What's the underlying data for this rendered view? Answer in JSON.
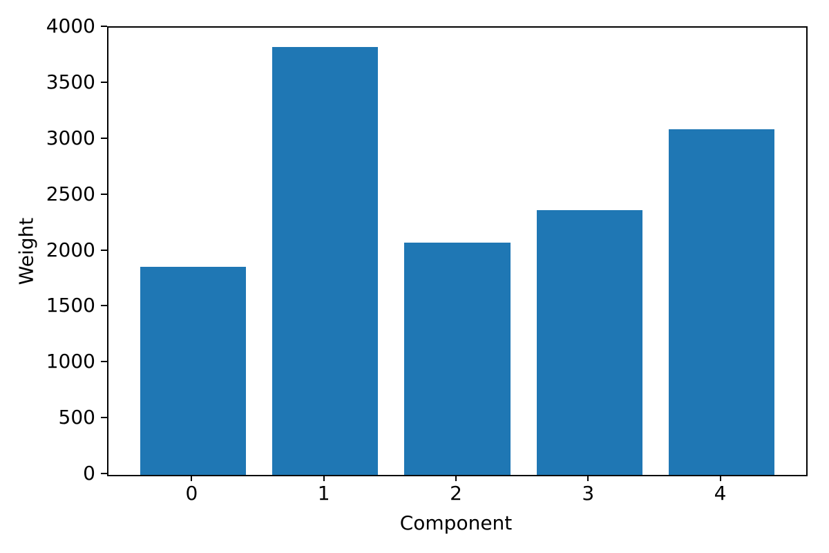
{
  "chart_data": {
    "type": "bar",
    "title": "",
    "xlabel": "Component",
    "ylabel": "Weight",
    "categories": [
      "0",
      "1",
      "2",
      "3",
      "4"
    ],
    "values": [
      1860,
      3830,
      2080,
      2370,
      3090
    ],
    "ylim": [
      0,
      4000
    ],
    "yticks": [
      0,
      500,
      1000,
      1500,
      2000,
      2500,
      3000,
      3500,
      4000
    ],
    "xlim": [
      -0.64,
      4.64
    ],
    "bar_width": 0.8,
    "bar_color": "#1f77b4",
    "grid": false,
    "legend": "none"
  }
}
